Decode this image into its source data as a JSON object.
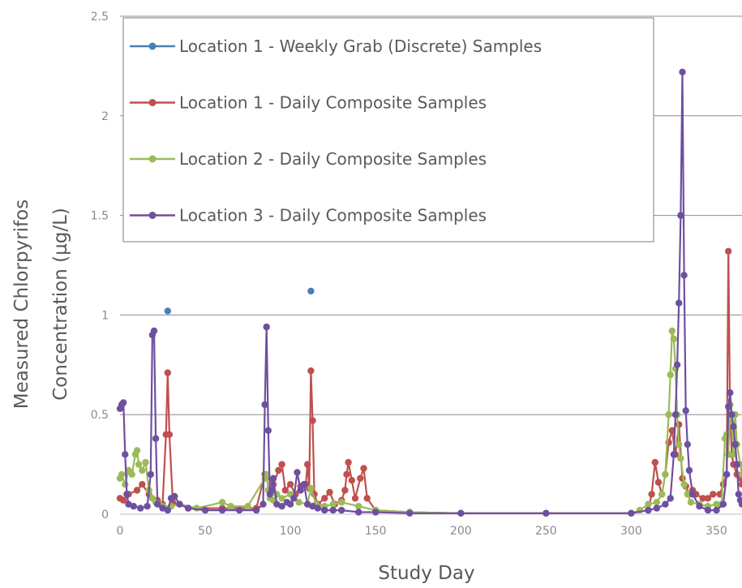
{
  "chart_data": {
    "type": "line",
    "title": "",
    "xlabel": "Study Day",
    "ylabel_line1": "Measured Chlorpyrifos",
    "ylabel_line2": "Concentration (µg/L)",
    "xlim": [
      0,
      365
    ],
    "ylim": [
      0,
      2.5
    ],
    "x_ticks": [
      0,
      50,
      100,
      150,
      200,
      250,
      300,
      350
    ],
    "y_ticks": [
      0,
      0.5,
      1,
      1.5,
      2,
      2.5
    ],
    "y_tick_labels": [
      "0",
      "0.5",
      "1",
      "1.5",
      "2",
      "2.5"
    ],
    "grid": "horizontal",
    "legend_position": "top-left",
    "series": [
      {
        "name": "Location 1 - Weekly Grab (Discrete) Samples",
        "color": "#4a7fb5",
        "markers_only": true,
        "x": [
          28,
          112
        ],
        "y": [
          1.02,
          1.12
        ]
      },
      {
        "name": "Location 1 - Daily Composite Samples",
        "color": "#c0504d",
        "x": [
          0,
          2,
          5,
          10,
          13,
          17,
          22,
          25,
          27,
          28,
          29,
          31,
          35,
          40,
          60,
          80,
          85,
          90,
          93,
          95,
          97,
          100,
          103,
          106,
          109,
          110,
          111,
          112,
          113,
          114,
          116,
          120,
          123,
          126,
          130,
          132,
          133,
          134,
          136,
          138,
          141,
          143,
          145,
          150,
          170,
          200,
          250,
          300,
          310,
          312,
          314,
          316,
          318,
          320,
          322,
          324,
          326,
          328,
          330,
          332,
          334,
          336,
          338,
          342,
          345,
          348,
          352,
          354,
          356,
          357,
          358,
          359,
          360,
          362,
          364,
          365
        ],
        "y": [
          0.08,
          0.07,
          0.1,
          0.12,
          0.15,
          0.1,
          0.07,
          0.05,
          0.4,
          0.71,
          0.4,
          0.06,
          0.05,
          0.03,
          0.03,
          0.03,
          0.2,
          0.15,
          0.22,
          0.25,
          0.12,
          0.15,
          0.1,
          0.14,
          0.15,
          0.25,
          0.13,
          0.72,
          0.47,
          0.1,
          0.05,
          0.08,
          0.11,
          0.05,
          0.07,
          0.12,
          0.2,
          0.26,
          0.17,
          0.08,
          0.18,
          0.23,
          0.08,
          0.02,
          0.01,
          0.005,
          0.005,
          0.005,
          0.02,
          0.1,
          0.26,
          0.16,
          0.1,
          0.2,
          0.36,
          0.42,
          0.3,
          0.45,
          0.18,
          0.14,
          0.1,
          0.12,
          0.1,
          0.08,
          0.08,
          0.1,
          0.1,
          0.15,
          0.2,
          1.32,
          0.5,
          0.3,
          0.25,
          0.2,
          0.18,
          0.15
        ]
      },
      {
        "name": "Location 2 - Daily Composite Samples",
        "color": "#9bbb59",
        "x": [
          0,
          1,
          3,
          5,
          7,
          9,
          10,
          11,
          13,
          15,
          17,
          19,
          21,
          23,
          25,
          30,
          35,
          45,
          60,
          65,
          75,
          85,
          86,
          87,
          88,
          90,
          92,
          95,
          100,
          105,
          110,
          112,
          115,
          120,
          125,
          130,
          140,
          150,
          170,
          200,
          250,
          300,
          305,
          310,
          315,
          318,
          320,
          322,
          323,
          324,
          325,
          326,
          327,
          328,
          329,
          331,
          333,
          335,
          340,
          345,
          350,
          353,
          355,
          356,
          357,
          358,
          359,
          360,
          361,
          362,
          364,
          365
        ],
        "y": [
          0.18,
          0.2,
          0.15,
          0.22,
          0.2,
          0.3,
          0.32,
          0.25,
          0.22,
          0.26,
          0.12,
          0.08,
          0.06,
          0.05,
          0.04,
          0.04,
          0.05,
          0.03,
          0.06,
          0.04,
          0.04,
          0.18,
          0.2,
          0.12,
          0.08,
          0.07,
          0.1,
          0.08,
          0.1,
          0.06,
          0.05,
          0.13,
          0.05,
          0.04,
          0.05,
          0.06,
          0.04,
          0.02,
          0.01,
          0.005,
          0.005,
          0.005,
          0.02,
          0.05,
          0.06,
          0.1,
          0.2,
          0.5,
          0.7,
          0.92,
          0.88,
          0.73,
          0.5,
          0.35,
          0.28,
          0.15,
          0.1,
          0.06,
          0.05,
          0.04,
          0.05,
          0.05,
          0.38,
          0.4,
          0.3,
          0.55,
          0.45,
          0.3,
          0.5,
          0.35,
          0.25,
          0.2
        ]
      },
      {
        "name": "Location 3 - Daily Composite Samples",
        "color": "#6e4fa0",
        "x": [
          0,
          1,
          2,
          3,
          4,
          5,
          8,
          12,
          16,
          18,
          19,
          20,
          21,
          22,
          25,
          28,
          30,
          32,
          35,
          40,
          50,
          60,
          70,
          80,
          84,
          85,
          86,
          87,
          88,
          89,
          90,
          92,
          95,
          98,
          100,
          102,
          104,
          106,
          108,
          110,
          113,
          116,
          120,
          125,
          130,
          140,
          150,
          170,
          200,
          250,
          300,
          310,
          315,
          320,
          323,
          325,
          326,
          327,
          328,
          329,
          330,
          331,
          332,
          333,
          334,
          336,
          340,
          345,
          350,
          354,
          356,
          357,
          358,
          359,
          360,
          361,
          362,
          363,
          364,
          365
        ],
        "y": [
          0.53,
          0.55,
          0.56,
          0.3,
          0.1,
          0.05,
          0.04,
          0.03,
          0.04,
          0.2,
          0.9,
          0.92,
          0.38,
          0.05,
          0.03,
          0.02,
          0.08,
          0.09,
          0.05,
          0.03,
          0.02,
          0.02,
          0.02,
          0.02,
          0.05,
          0.55,
          0.94,
          0.42,
          0.1,
          0.12,
          0.18,
          0.05,
          0.04,
          0.06,
          0.05,
          0.08,
          0.21,
          0.12,
          0.15,
          0.05,
          0.04,
          0.03,
          0.02,
          0.02,
          0.02,
          0.01,
          0.01,
          0.005,
          0.005,
          0.005,
          0.005,
          0.02,
          0.03,
          0.05,
          0.08,
          0.3,
          0.5,
          0.75,
          1.06,
          1.5,
          2.22,
          1.2,
          0.52,
          0.35,
          0.22,
          0.1,
          0.04,
          0.02,
          0.02,
          0.05,
          0.2,
          0.54,
          0.61,
          0.5,
          0.44,
          0.35,
          0.25,
          0.1,
          0.07,
          0.05
        ]
      }
    ]
  }
}
